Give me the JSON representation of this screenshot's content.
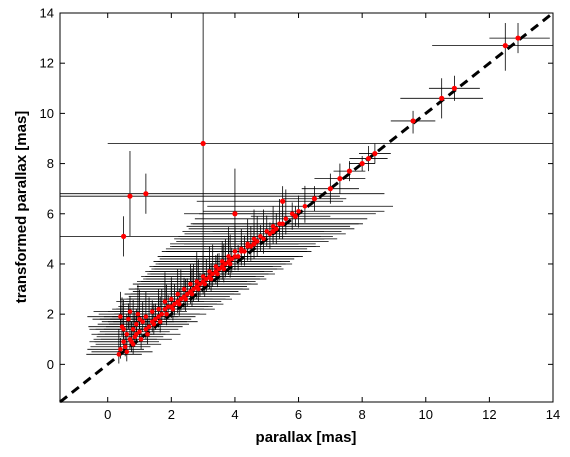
{
  "chart_data": {
    "type": "scatter",
    "xlabel": "parallax [mas]",
    "ylabel": "transformed parallax [mas]",
    "xlim": [
      -1.5,
      14
    ],
    "ylim": [
      -1.5,
      14
    ],
    "xticks": [
      0,
      2,
      4,
      6,
      8,
      10,
      12,
      14
    ],
    "yticks": [
      0,
      2,
      4,
      6,
      8,
      10,
      12,
      14
    ],
    "xtick_labels": [
      "0",
      "2",
      "4",
      "6",
      "8",
      "10",
      "12",
      "14"
    ],
    "ytick_labels": [
      "0",
      "2",
      "4",
      "6",
      "8",
      "10",
      "12",
      "14"
    ],
    "grid": false,
    "reference_line": {
      "style": "dashed",
      "color": "#000000",
      "from": [
        -1.5,
        -1.5
      ],
      "to": [
        14,
        14
      ]
    },
    "marker_color": "#ff0000",
    "errorbar_color": "#000000",
    "highlighted_points": [
      {
        "x": 12.9,
        "y": 13.0,
        "xerr": [
          0.9,
          1.0
        ],
        "yerr": [
          0.6,
          0.6
        ]
      },
      {
        "x": 12.5,
        "y": 12.7,
        "xerr": [
          2.3,
          1.5
        ],
        "yerr": [
          1.0,
          0.9
        ]
      },
      {
        "x": 10.9,
        "y": 11.0,
        "xerr": [
          0.8,
          0.8
        ],
        "yerr": [
          0.5,
          0.5
        ]
      },
      {
        "x": 10.5,
        "y": 10.6,
        "xerr": [
          1.3,
          1.3
        ],
        "yerr": [
          0.8,
          0.8
        ]
      },
      {
        "x": 9.6,
        "y": 9.7,
        "xerr": [
          0.7,
          0.7
        ],
        "yerr": [
          0.5,
          0.4
        ]
      },
      {
        "x": 3.0,
        "y": 8.8,
        "xerr": [
          3.0,
          11.8
        ],
        "yerr": [
          5.3,
          5.3
        ]
      },
      {
        "x": 8.4,
        "y": 8.4,
        "xerr": [
          0.5,
          0.5
        ],
        "yerr": [
          0.4,
          0.4
        ]
      },
      {
        "x": 8.2,
        "y": 8.2,
        "xerr": [
          0.6,
          0.6
        ],
        "yerr": [
          0.5,
          0.5
        ]
      },
      {
        "x": 7.3,
        "y": 7.4,
        "xerr": [
          0.8,
          0.8
        ],
        "yerr": [
          0.6,
          0.6
        ]
      },
      {
        "x": 1.2,
        "y": 6.8,
        "xerr": [
          2.8,
          7.5
        ],
        "yerr": [
          0.8,
          0.8
        ]
      },
      {
        "x": 0.7,
        "y": 6.7,
        "xerr": [
          2.2,
          6.6
        ],
        "yerr": [
          1.6,
          1.8
        ]
      },
      {
        "x": 4.0,
        "y": 6.0,
        "xerr": [
          1.6,
          1.6
        ],
        "yerr": [
          1.6,
          1.8
        ]
      },
      {
        "x": 5.5,
        "y": 6.5,
        "xerr": [
          2.7,
          1.9
        ],
        "yerr": [
          0.6,
          0.6
        ]
      },
      {
        "x": 0.5,
        "y": 5.1,
        "xerr": [
          2.0,
          6.2
        ],
        "yerr": [
          0.8,
          0.8
        ]
      },
      {
        "x": 6.5,
        "y": 6.6,
        "xerr": [
          1.0,
          1.0
        ],
        "yerr": [
          0.5,
          0.5
        ]
      },
      {
        "x": 7.0,
        "y": 7.0,
        "xerr": [
          0.9,
          0.9
        ],
        "yerr": [
          0.6,
          0.6
        ]
      },
      {
        "x": 7.6,
        "y": 7.7,
        "xerr": [
          0.5,
          0.5
        ],
        "yerr": [
          0.4,
          0.4
        ]
      },
      {
        "x": 8.0,
        "y": 8.0,
        "xerr": [
          0.4,
          0.4
        ],
        "yerr": [
          0.3,
          0.3
        ]
      },
      {
        "x": 5.9,
        "y": 5.9,
        "xerr": [
          1.4,
          1.1
        ],
        "yerr": [
          0.4,
          0.4
        ]
      },
      {
        "x": 5.2,
        "y": 5.3,
        "xerr": [
          1.9,
          1.6
        ],
        "yerr": [
          0.5,
          0.4
        ]
      },
      {
        "x": 4.6,
        "y": 4.8,
        "xerr": [
          2.2,
          1.4
        ],
        "yerr": [
          0.6,
          0.6
        ]
      }
    ],
    "dense_cluster": {
      "description": "many sources with x between 0.3 and 6.5 mas, y close to x, with wide horizontal error bars",
      "x_range": [
        0.3,
        6.5
      ],
      "points": [
        {
          "x": 0.4,
          "y": 0.6
        },
        {
          "x": 0.5,
          "y": 0.9
        },
        {
          "x": 0.6,
          "y": 1.2
        },
        {
          "x": 0.7,
          "y": 1.0
        },
        {
          "x": 0.8,
          "y": 1.4
        },
        {
          "x": 0.9,
          "y": 1.6
        },
        {
          "x": 1.0,
          "y": 1.3
        },
        {
          "x": 1.1,
          "y": 1.7
        },
        {
          "x": 1.2,
          "y": 1.9
        },
        {
          "x": 1.3,
          "y": 1.5
        },
        {
          "x": 1.4,
          "y": 2.1
        },
        {
          "x": 1.5,
          "y": 1.8
        },
        {
          "x": 1.6,
          "y": 2.2
        },
        {
          "x": 1.7,
          "y": 2.0
        },
        {
          "x": 1.8,
          "y": 2.5
        },
        {
          "x": 1.9,
          "y": 2.3
        },
        {
          "x": 2.0,
          "y": 2.6
        },
        {
          "x": 2.1,
          "y": 2.4
        },
        {
          "x": 2.2,
          "y": 2.8
        },
        {
          "x": 2.3,
          "y": 2.6
        },
        {
          "x": 2.4,
          "y": 3.0
        },
        {
          "x": 2.5,
          "y": 2.8
        },
        {
          "x": 2.6,
          "y": 3.2
        },
        {
          "x": 2.7,
          "y": 3.0
        },
        {
          "x": 2.8,
          "y": 3.3
        },
        {
          "x": 2.9,
          "y": 3.2
        },
        {
          "x": 3.0,
          "y": 3.5
        },
        {
          "x": 3.1,
          "y": 3.4
        },
        {
          "x": 3.2,
          "y": 3.7
        },
        {
          "x": 3.3,
          "y": 3.6
        },
        {
          "x": 3.4,
          "y": 3.9
        },
        {
          "x": 3.5,
          "y": 3.8
        },
        {
          "x": 3.6,
          "y": 4.1
        },
        {
          "x": 3.7,
          "y": 4.0
        },
        {
          "x": 3.8,
          "y": 4.3
        },
        {
          "x": 3.9,
          "y": 4.2
        },
        {
          "x": 4.0,
          "y": 4.5
        },
        {
          "x": 4.2,
          "y": 4.6
        },
        {
          "x": 4.4,
          "y": 4.8
        },
        {
          "x": 4.6,
          "y": 5.0
        },
        {
          "x": 4.8,
          "y": 5.1
        },
        {
          "x": 5.0,
          "y": 5.3
        },
        {
          "x": 5.2,
          "y": 5.5
        },
        {
          "x": 5.4,
          "y": 5.6
        },
        {
          "x": 5.6,
          "y": 5.8
        },
        {
          "x": 5.8,
          "y": 6.0
        },
        {
          "x": 6.0,
          "y": 6.1
        },
        {
          "x": 6.2,
          "y": 6.3
        },
        {
          "x": 0.35,
          "y": 0.4
        },
        {
          "x": 0.45,
          "y": 1.5
        },
        {
          "x": 0.55,
          "y": 0.7
        },
        {
          "x": 0.65,
          "y": 1.8
        },
        {
          "x": 0.75,
          "y": 0.9
        },
        {
          "x": 0.85,
          "y": 1.1
        },
        {
          "x": 0.95,
          "y": 2.0
        },
        {
          "x": 1.05,
          "y": 1.0
        },
        {
          "x": 1.25,
          "y": 1.2
        },
        {
          "x": 1.45,
          "y": 1.6
        },
        {
          "x": 1.65,
          "y": 1.7
        },
        {
          "x": 1.85,
          "y": 2.0
        },
        {
          "x": 2.05,
          "y": 2.2
        },
        {
          "x": 2.25,
          "y": 2.4
        },
        {
          "x": 2.45,
          "y": 2.6
        },
        {
          "x": 2.65,
          "y": 2.8
        },
        {
          "x": 2.85,
          "y": 3.0
        },
        {
          "x": 3.05,
          "y": 3.2
        },
        {
          "x": 3.25,
          "y": 3.4
        },
        {
          "x": 3.45,
          "y": 3.6
        },
        {
          "x": 3.65,
          "y": 3.8
        },
        {
          "x": 3.85,
          "y": 4.0
        },
        {
          "x": 4.1,
          "y": 4.3
        },
        {
          "x": 4.3,
          "y": 4.5
        },
        {
          "x": 4.5,
          "y": 4.7
        },
        {
          "x": 4.7,
          "y": 4.9
        },
        {
          "x": 4.9,
          "y": 5.0
        },
        {
          "x": 5.1,
          "y": 5.2
        },
        {
          "x": 5.3,
          "y": 5.4
        },
        {
          "x": 5.5,
          "y": 5.6
        },
        {
          "x": 0.4,
          "y": 1.9
        },
        {
          "x": 0.5,
          "y": 1.4
        },
        {
          "x": 0.6,
          "y": 0.5
        },
        {
          "x": 0.7,
          "y": 2.1
        },
        {
          "x": 0.8,
          "y": 0.8
        },
        {
          "x": 0.9,
          "y": 1.2
        },
        {
          "x": 1.0,
          "y": 1.8
        },
        {
          "x": 1.2,
          "y": 1.4
        },
        {
          "x": 1.4,
          "y": 1.7
        },
        {
          "x": 1.6,
          "y": 1.9
        },
        {
          "x": 1.8,
          "y": 2.2
        },
        {
          "x": 2.0,
          "y": 2.3
        },
        {
          "x": 2.2,
          "y": 2.5
        },
        {
          "x": 2.4,
          "y": 2.7
        },
        {
          "x": 2.6,
          "y": 2.9
        },
        {
          "x": 2.8,
          "y": 3.1
        },
        {
          "x": 3.0,
          "y": 3.3
        },
        {
          "x": 3.2,
          "y": 3.5
        },
        {
          "x": 3.4,
          "y": 3.7
        },
        {
          "x": 3.6,
          "y": 3.9
        },
        {
          "x": 3.8,
          "y": 4.1
        },
        {
          "x": 4.0,
          "y": 4.3
        },
        {
          "x": 4.2,
          "y": 4.5
        },
        {
          "x": 4.4,
          "y": 4.7
        }
      ]
    }
  }
}
